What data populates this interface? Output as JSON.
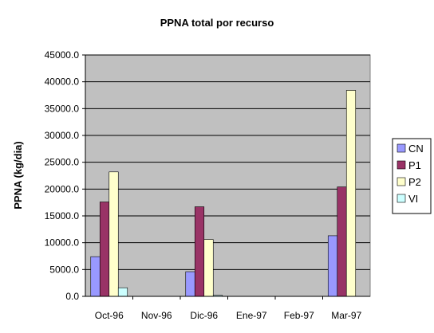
{
  "chart_data": {
    "type": "bar",
    "title": "PPNA total por recurso",
    "ylabel": "PPNA (kg/dia)",
    "xlabel": "",
    "categories": [
      "Oct-96",
      "Nov-96",
      "Dic-96",
      "Ene-97",
      "Feb-97",
      "Mar-97"
    ],
    "ylim": [
      0,
      45000
    ],
    "yticks": [
      "0.0",
      "5000.0",
      "10000.0",
      "15000.0",
      "20000.0",
      "25000.0",
      "30000.0",
      "35000.0",
      "40000.0",
      "45000.0"
    ],
    "grid": true,
    "legend_position": "right",
    "series": [
      {
        "name": "CN",
        "color": "#9999ff",
        "values": [
          7400,
          0,
          4600,
          0,
          0,
          11300
        ]
      },
      {
        "name": "P1",
        "color": "#993366",
        "values": [
          17600,
          0,
          16700,
          0,
          0,
          20400
        ]
      },
      {
        "name": "P2",
        "color": "#ffffcc",
        "values": [
          23200,
          0,
          10600,
          0,
          0,
          38400
        ]
      },
      {
        "name": "VI",
        "color": "#ccffff",
        "values": [
          1600,
          0,
          200,
          0,
          0,
          0
        ]
      }
    ],
    "plot_background": "#c0c0c0"
  }
}
